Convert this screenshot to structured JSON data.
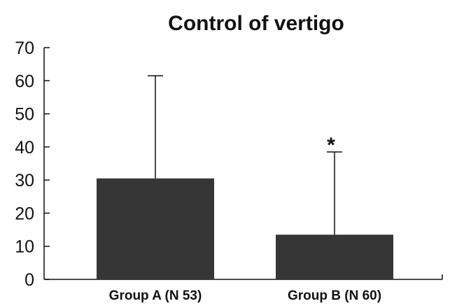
{
  "chart_data": {
    "type": "bar",
    "title": "Control of vertigo",
    "xlabel": "",
    "ylabel": "",
    "categories": [
      "Group A (N 53)",
      "Group B (N 60)"
    ],
    "values": [
      30.5,
      13.5
    ],
    "error_upper": [
      61.5,
      38.5
    ],
    "annotations": [
      {
        "category": "Group B (N 60)",
        "text": "*"
      }
    ],
    "ylim": [
      0,
      70
    ],
    "yticks": [
      0,
      10,
      20,
      30,
      40,
      50,
      60,
      70
    ],
    "grid": false,
    "legend": "none",
    "colors": {
      "bar": "#363636",
      "axis": "#111111"
    }
  }
}
